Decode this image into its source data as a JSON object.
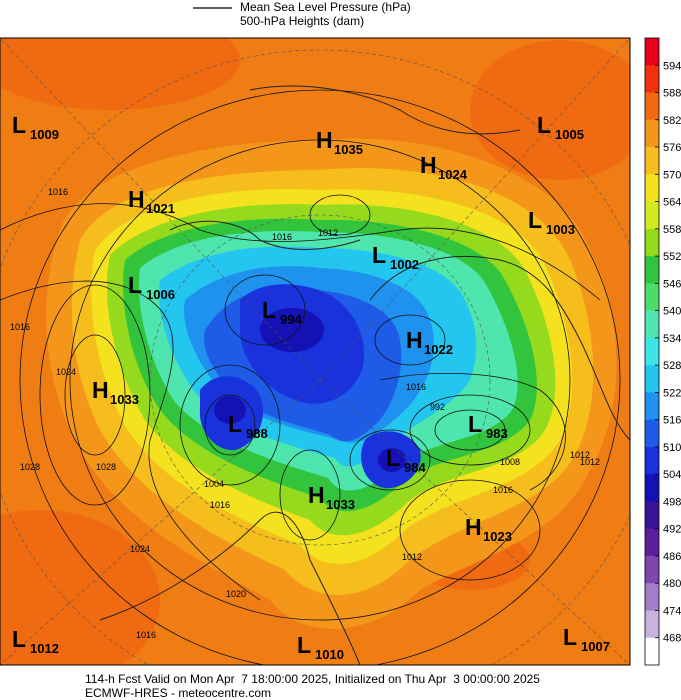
{
  "header": {
    "legend": [
      "Mean Sea Level Pressure (hPa)",
      "500-hPa Heights (dam)"
    ]
  },
  "colorbar": {
    "ticks": [
      594,
      588,
      582,
      576,
      570,
      564,
      558,
      552,
      546,
      540,
      534,
      528,
      522,
      516,
      510,
      504,
      498,
      492,
      486,
      480,
      474,
      468
    ],
    "colors": [
      "#e8001c",
      "#f0300e",
      "#f06a12",
      "#f4961a",
      "#f6be1c",
      "#f4e21e",
      "#d2ea20",
      "#96da1e",
      "#32c43c",
      "#4cdc6c",
      "#4ee6ae",
      "#3ce6e6",
      "#22c6ee",
      "#1e92ee",
      "#1e5ce8",
      "#1a32dc",
      "#1412b4",
      "#3a1496",
      "#5e1e9c",
      "#7e46b0",
      "#a27ec8",
      "#c8b2de",
      "#ffffff"
    ]
  },
  "centers": [
    {
      "letter": "L",
      "value": "1009"
    },
    {
      "letter": "H",
      "value": "1035"
    },
    {
      "letter": "H",
      "value": "1024"
    },
    {
      "letter": "L",
      "value": "1005"
    },
    {
      "letter": "H",
      "value": "1021"
    },
    {
      "letter": "L",
      "value": "1003"
    },
    {
      "letter": "L",
      "value": "1002"
    },
    {
      "letter": "L",
      "value": "1006"
    },
    {
      "letter": "L",
      "value": "994"
    },
    {
      "letter": "H",
      "value": "1022"
    },
    {
      "letter": "H",
      "value": "1033"
    },
    {
      "letter": "L",
      "value": "983"
    },
    {
      "letter": "L",
      "value": "988"
    },
    {
      "letter": "L",
      "value": "984"
    },
    {
      "letter": "H",
      "value": "1033"
    },
    {
      "letter": "H",
      "value": "1023"
    },
    {
      "letter": "L",
      "value": "1012"
    },
    {
      "letter": "L",
      "value": "1010"
    },
    {
      "letter": "L",
      "value": "1007"
    }
  ],
  "isobar_labels": [
    "1016",
    "1012",
    "1016",
    "1016",
    "1024",
    "1028",
    "1012",
    "1004",
    "1016",
    "992",
    "1008",
    "1016",
    "1012",
    "1024",
    "1020",
    "1016",
    "1012",
    "1016",
    "1028"
  ],
  "footer": [
    "114-h Fcst Valid on Mon Apr  7 18:00:00 2025, Initialized on Thu Apr  3 00:00:00 2025",
    "ECMWF-HRES - meteocentre.com"
  ]
}
